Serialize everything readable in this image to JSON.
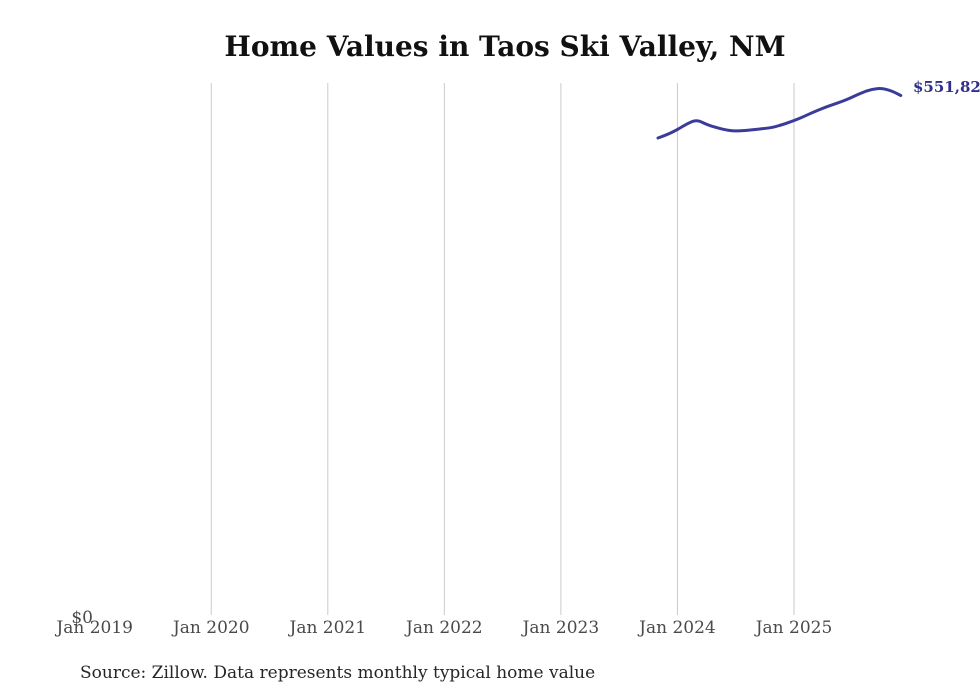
{
  "chart_data": {
    "type": "line",
    "title": "Home Values in Taos Ski Valley, NM",
    "x": [
      "2023-11",
      "2023-12",
      "2024-01",
      "2024-02",
      "2024-03",
      "2024-04",
      "2024-05",
      "2024-06",
      "2024-07",
      "2024-08",
      "2024-09",
      "2024-10",
      "2024-11",
      "2024-12",
      "2025-01",
      "2025-02",
      "2025-03",
      "2025-04",
      "2025-05",
      "2025-06",
      "2025-07",
      "2025-08",
      "2025-09",
      "2025-10",
      "2025-11",
      "2025-12"
    ],
    "values": [
      507100,
      510800,
      516000,
      522300,
      526500,
      521300,
      518100,
      515500,
      514400,
      515000,
      516000,
      517100,
      518700,
      521800,
      525400,
      529700,
      534400,
      538600,
      542300,
      545900,
      550100,
      554800,
      558500,
      559600,
      557000,
      551825
    ],
    "x_tick_labels": [
      "Jan 2019",
      "Jan 2020",
      "Jan 2021",
      "Jan 2022",
      "Jan 2023",
      "Jan 2024",
      "Jan 2025"
    ],
    "y_tick_labels": [
      "$0"
    ],
    "ylim": [
      0,
      565000
    ],
    "xlabel": "",
    "ylabel": "",
    "legend": "none",
    "grid": "vertical",
    "end_label": {
      "visible_text": "$551,82",
      "clipped_digit": "2"
    },
    "colors": {
      "line": "#3b3b99",
      "end_label": "#30308c",
      "gridline": "#cacaca",
      "tick_text": "#4a4a4a",
      "title_text": "#111111",
      "source_text": "#262626",
      "background": "#ffffff"
    }
  },
  "footer": {
    "source_note": "Source: Zillow. Data represents monthly typical home value"
  }
}
